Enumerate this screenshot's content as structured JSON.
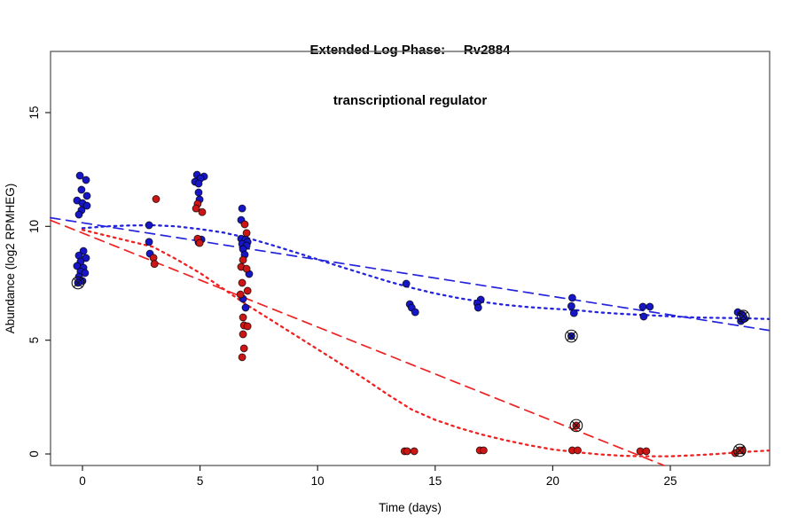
{
  "title": {
    "line1": "Extended Log Phase:     Rv2884",
    "line2": "transcriptional regulator"
  },
  "colors": {
    "blue_point": "#1616c8",
    "red_point": "#cc1515",
    "blue_line": "#2424dd",
    "red_line": "#ee2222",
    "axis": "#5a5a5a",
    "tick": "#222222",
    "text": "#000000"
  },
  "chart_data": {
    "type": "scatter",
    "title": "Extended Log Phase: Rv2884 transcriptional regulator",
    "xlabel": "Time  (days)",
    "ylabel": "Abundance  (log2 RPMHEG)",
    "xlim": [
      -1.36,
      29.2
    ],
    "ylim": [
      -0.5,
      17.7
    ],
    "x_ticks": [
      0,
      5,
      10,
      15,
      20,
      25
    ],
    "y_ticks": [
      0,
      5,
      10,
      15
    ],
    "grid": false,
    "legend": "none",
    "series": [
      {
        "name": "blue-samples",
        "kind": "scatter",
        "color_key": "blue_point",
        "points": [
          [
            -0.11,
            12.23
          ],
          [
            0.15,
            12.04
          ],
          [
            -0.04,
            11.61
          ],
          [
            0.19,
            11.34
          ],
          [
            -0.23,
            11.14
          ],
          [
            0.0,
            11.02
          ],
          [
            0.19,
            10.91
          ],
          [
            -0.04,
            10.71
          ],
          [
            -0.15,
            10.52
          ],
          [
            0.04,
            8.92
          ],
          [
            -0.15,
            8.72
          ],
          [
            0.15,
            8.61
          ],
          [
            -0.08,
            8.45
          ],
          [
            -0.23,
            8.26
          ],
          [
            0.04,
            8.18
          ],
          [
            -0.08,
            8.02
          ],
          [
            0.11,
            7.95
          ],
          [
            -0.15,
            7.79
          ],
          [
            0.0,
            7.6
          ],
          [
            2.83,
            10.05
          ],
          [
            2.83,
            9.32
          ],
          [
            2.87,
            8.8
          ],
          [
            4.87,
            12.27
          ],
          [
            5.17,
            12.19
          ],
          [
            5.02,
            12.11
          ],
          [
            4.79,
            11.96
          ],
          [
            4.94,
            11.88
          ],
          [
            4.94,
            11.49
          ],
          [
            4.98,
            11.18
          ],
          [
            5.06,
            9.42
          ],
          [
            4.94,
            9.3
          ],
          [
            6.79,
            10.79
          ],
          [
            6.75,
            10.28
          ],
          [
            6.75,
            9.46
          ],
          [
            6.94,
            9.42
          ],
          [
            7.02,
            9.31
          ],
          [
            6.79,
            9.23
          ],
          [
            6.98,
            9.15
          ],
          [
            6.83,
            9.0
          ],
          [
            6.9,
            8.76
          ],
          [
            7.09,
            7.91
          ],
          [
            6.83,
            6.82
          ],
          [
            6.94,
            6.43
          ],
          [
            13.77,
            7.48
          ],
          [
            13.92,
            6.58
          ],
          [
            14.0,
            6.43
          ],
          [
            14.15,
            6.23
          ],
          [
            16.94,
            6.78
          ],
          [
            16.79,
            6.62
          ],
          [
            16.83,
            6.43
          ],
          [
            20.83,
            6.86
          ],
          [
            20.79,
            6.5
          ],
          [
            20.9,
            6.19
          ],
          [
            23.83,
            6.47
          ],
          [
            24.13,
            6.47
          ],
          [
            23.87,
            6.04
          ],
          [
            27.87,
            6.23
          ],
          [
            28.06,
            6.12
          ],
          [
            28.0,
            5.84
          ],
          [
            28.15,
            5.95
          ]
        ]
      },
      {
        "name": "red-samples",
        "kind": "scatter",
        "color_key": "red_point",
        "points": [
          [
            3.13,
            11.2
          ],
          [
            3.02,
            8.62
          ],
          [
            3.06,
            8.35
          ],
          [
            4.9,
            10.99
          ],
          [
            4.83,
            10.79
          ],
          [
            5.09,
            10.63
          ],
          [
            4.9,
            9.46
          ],
          [
            4.98,
            9.27
          ],
          [
            6.9,
            10.09
          ],
          [
            6.98,
            9.71
          ],
          [
            6.83,
            8.53
          ],
          [
            6.75,
            8.22
          ],
          [
            6.98,
            8.14
          ],
          [
            6.79,
            7.52
          ],
          [
            7.02,
            7.17
          ],
          [
            6.72,
            7.01
          ],
          [
            6.83,
            6.0
          ],
          [
            6.87,
            5.65
          ],
          [
            7.02,
            5.61
          ],
          [
            6.83,
            5.26
          ],
          [
            6.87,
            4.64
          ],
          [
            6.79,
            4.25
          ],
          [
            13.7,
            0.12
          ],
          [
            13.81,
            0.12
          ],
          [
            14.11,
            0.12
          ],
          [
            16.9,
            0.16
          ],
          [
            17.06,
            0.16
          ],
          [
            20.83,
            0.16
          ],
          [
            21.06,
            0.16
          ],
          [
            23.72,
            0.12
          ],
          [
            23.98,
            0.12
          ],
          [
            27.76,
            0.04
          ],
          [
            28.06,
            0.16
          ]
        ]
      },
      {
        "name": "blue-linear-fit",
        "kind": "line",
        "style": "dashed",
        "color_key": "blue_line",
        "points": [
          [
            -1.36,
            10.38
          ],
          [
            29.2,
            5.43
          ]
        ]
      },
      {
        "name": "red-linear-fit",
        "kind": "line",
        "style": "dashed",
        "color_key": "red_line",
        "points": [
          [
            -1.36,
            10.27
          ],
          [
            24.72,
            -0.5
          ]
        ]
      },
      {
        "name": "blue-spline-fit",
        "kind": "line",
        "style": "dotted",
        "color_key": "blue_line",
        "points": [
          [
            0,
            9.92
          ],
          [
            1,
            10.0
          ],
          [
            2,
            10.04
          ],
          [
            3,
            10.05
          ],
          [
            4,
            10.0
          ],
          [
            5,
            9.88
          ],
          [
            6,
            9.73
          ],
          [
            7,
            9.5
          ],
          [
            8,
            9.2
          ],
          [
            9,
            8.88
          ],
          [
            10,
            8.55
          ],
          [
            11,
            8.22
          ],
          [
            12,
            7.9
          ],
          [
            13,
            7.58
          ],
          [
            14,
            7.3
          ],
          [
            15,
            7.05
          ],
          [
            16,
            6.85
          ],
          [
            17,
            6.68
          ],
          [
            18,
            6.55
          ],
          [
            19,
            6.45
          ],
          [
            20,
            6.38
          ],
          [
            21,
            6.32
          ],
          [
            22,
            6.22
          ],
          [
            23,
            6.15
          ],
          [
            24,
            6.1
          ],
          [
            25,
            6.05
          ],
          [
            26,
            6.0
          ],
          [
            27,
            5.98
          ],
          [
            28,
            5.97
          ],
          [
            29.2,
            5.93
          ]
        ]
      },
      {
        "name": "red-spline-fit",
        "kind": "line",
        "style": "dotted",
        "color_key": "red_line",
        "points": [
          [
            0,
            9.85
          ],
          [
            1,
            9.6
          ],
          [
            2,
            9.35
          ],
          [
            3,
            9.1
          ],
          [
            4,
            8.55
          ],
          [
            5,
            7.95
          ],
          [
            6,
            7.25
          ],
          [
            7,
            6.55
          ],
          [
            8,
            5.9
          ],
          [
            9,
            5.25
          ],
          [
            10,
            4.6
          ],
          [
            11,
            3.95
          ],
          [
            12,
            3.3
          ],
          [
            13,
            2.6
          ],
          [
            14,
            1.95
          ],
          [
            15,
            1.5
          ],
          [
            16,
            1.15
          ],
          [
            17,
            0.85
          ],
          [
            18,
            0.6
          ],
          [
            19,
            0.38
          ],
          [
            20,
            0.2
          ],
          [
            21,
            0.08
          ],
          [
            22,
            -0.02
          ],
          [
            23,
            -0.08
          ],
          [
            24,
            -0.1
          ],
          [
            25,
            -0.1
          ],
          [
            26,
            -0.06
          ],
          [
            27,
            0.0
          ],
          [
            28,
            0.08
          ],
          [
            29.2,
            0.15
          ]
        ]
      }
    ],
    "flagged_points": [
      {
        "x": -0.19,
        "y": 7.52,
        "color_key": "blue_point"
      },
      {
        "x": 20.79,
        "y": 5.18,
        "color_key": "blue_point"
      },
      {
        "x": 21.0,
        "y": 1.25,
        "color_key": "red_point"
      },
      {
        "x": 28.1,
        "y": 6.05,
        "color_key": "blue_point"
      },
      {
        "x": 27.95,
        "y": 0.16,
        "color_key": "red_point"
      }
    ]
  }
}
